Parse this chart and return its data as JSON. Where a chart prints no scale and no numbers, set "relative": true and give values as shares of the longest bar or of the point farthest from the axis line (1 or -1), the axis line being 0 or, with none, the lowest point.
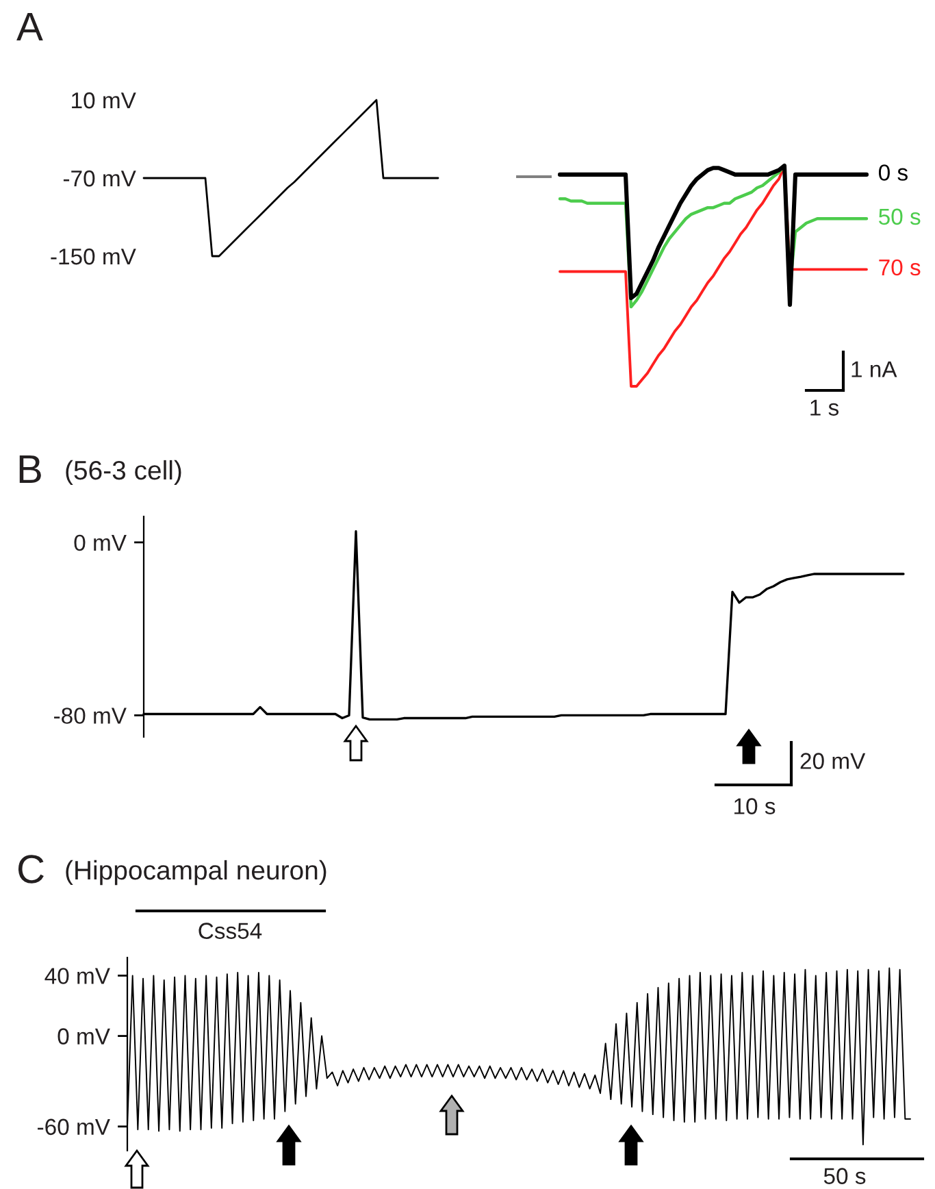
{
  "chart_data": [
    {
      "type": "line",
      "title": "A",
      "ylim": [
        -150,
        10
      ],
      "yticks": [
        {
          "value": 10,
          "label": "10 mV"
        },
        {
          "value": -70,
          "label": "-70 mV"
        },
        {
          "value": -150,
          "label": "-150 mV"
        }
      ],
      "tick_labels": "y",
      "categories": [
        null,
        null,
        null,
        null,
        null,
        null,
        null,
        null,
        null,
        null,
        null,
        null,
        null,
        null,
        null,
        null,
        null,
        null,
        null,
        null,
        null,
        null,
        null,
        null,
        null,
        null,
        null,
        null,
        null,
        null,
        null,
        null,
        null,
        null,
        null,
        null,
        null,
        null,
        null,
        null,
        null,
        null,
        null,
        null
      ],
      "series": [
        {
          "color": "#000000",
          "values": [
            -70,
            -70,
            -70,
            -70,
            -70,
            -70,
            -70,
            -70,
            -70,
            -70,
            -150,
            -150,
            -143,
            -136,
            -129,
            -122,
            -115,
            -108,
            -101,
            -94,
            -87,
            -80,
            -74,
            -67,
            -60,
            -53,
            -46,
            -39,
            -32,
            -25,
            -18,
            -11,
            -4,
            3,
            10,
            -70,
            -70,
            -70,
            -70,
            -70,
            -70,
            -70,
            -70,
            -70
          ]
        }
      ]
    },
    {
      "type": "line",
      "relative": true,
      "tick_labels": false,
      "annotations": [
        "1 nA",
        "1 s"
      ],
      "categories": [
        null,
        null,
        null,
        null,
        null,
        null,
        null,
        null,
        null,
        null,
        null,
        null,
        null,
        null,
        null,
        null,
        null,
        null,
        null,
        null,
        null,
        null,
        null,
        null,
        null,
        null,
        null,
        null,
        null,
        null,
        null,
        null,
        null,
        null,
        null,
        null,
        null,
        null,
        null,
        null,
        null,
        null,
        null,
        null,
        null,
        null,
        null,
        null,
        null,
        null,
        null,
        null,
        null,
        null,
        null,
        null,
        null
      ],
      "series": [
        {
          "name": "70 s",
          "color": "#ff2020",
          "values": [
            0.52,
            0.52,
            0.52,
            0.52,
            0.52,
            0.52,
            0.52,
            0.52,
            0.52,
            0.52,
            0.52,
            0.52,
            0.52,
            0.0,
            0.0,
            0.03,
            0.06,
            0.1,
            0.14,
            0.17,
            0.21,
            0.25,
            0.28,
            0.32,
            0.36,
            0.39,
            0.43,
            0.47,
            0.5,
            0.54,
            0.58,
            0.61,
            0.65,
            0.69,
            0.72,
            0.76,
            0.8,
            0.83,
            0.87,
            0.91,
            0.94,
            1.0,
            0.53,
            0.53,
            0.53,
            0.53,
            0.53,
            0.53,
            0.53,
            0.53,
            0.53,
            0.53,
            0.53,
            0.53,
            0.53,
            0.53,
            0.53
          ]
        },
        {
          "name": "50 s",
          "color": "#4ccc4c",
          "values": [
            0.85,
            0.85,
            0.84,
            0.84,
            0.84,
            0.83,
            0.83,
            0.83,
            0.83,
            0.83,
            0.83,
            0.83,
            0.83,
            0.36,
            0.39,
            0.43,
            0.48,
            0.53,
            0.58,
            0.63,
            0.67,
            0.7,
            0.73,
            0.76,
            0.78,
            0.79,
            0.8,
            0.81,
            0.81,
            0.82,
            0.83,
            0.83,
            0.85,
            0.86,
            0.87,
            0.88,
            0.9,
            0.91,
            0.93,
            0.95,
            0.97,
            1.0,
            0.45,
            0.7,
            0.72,
            0.74,
            0.75,
            0.76,
            0.76,
            0.76,
            0.76,
            0.76,
            0.76,
            0.76,
            0.76,
            0.76,
            0.76
          ]
        },
        {
          "name": "0 s",
          "color": "#000000",
          "values": [
            0.96,
            0.96,
            0.96,
            0.96,
            0.96,
            0.96,
            0.96,
            0.96,
            0.96,
            0.96,
            0.96,
            0.96,
            0.96,
            0.4,
            0.42,
            0.47,
            0.52,
            0.57,
            0.63,
            0.68,
            0.73,
            0.78,
            0.83,
            0.87,
            0.91,
            0.94,
            0.96,
            0.98,
            0.99,
            0.99,
            0.98,
            0.97,
            0.96,
            0.96,
            0.96,
            0.96,
            0.96,
            0.96,
            0.96,
            0.97,
            0.98,
            1.0,
            0.37,
            0.96,
            0.96,
            0.96,
            0.96,
            0.96,
            0.96,
            0.96,
            0.96,
            0.96,
            0.96,
            0.96,
            0.96,
            0.96,
            0.96
          ]
        }
      ]
    },
    {
      "type": "line",
      "title": "B",
      "subtitle": "(56-3 cell)",
      "ylim": [
        -90,
        12
      ],
      "yticks": [
        {
          "value": 0,
          "label": "0 mV"
        },
        {
          "value": -80,
          "label": "-80 mV"
        }
      ],
      "tick_labels": "y",
      "annotations": [
        "20 mV",
        "10 s"
      ],
      "categories": [
        null,
        null,
        null,
        null,
        null,
        null,
        null,
        null,
        null,
        null,
        null,
        null,
        null,
        null,
        null,
        null,
        null,
        null,
        null,
        null,
        null,
        null,
        null,
        null,
        null,
        null,
        null,
        null,
        null,
        null,
        null,
        null,
        null,
        null,
        null,
        null,
        null,
        null,
        null,
        null,
        null,
        null,
        null,
        null,
        null,
        null,
        null,
        null,
        null,
        null,
        null,
        null,
        null,
        null,
        null,
        null,
        null,
        null,
        null,
        null,
        null,
        null,
        null,
        null,
        null,
        null,
        null,
        null,
        null,
        null,
        null,
        null,
        null,
        null,
        null,
        null,
        null,
        null,
        null,
        null,
        null,
        null,
        null,
        null,
        null,
        null,
        null,
        null,
        null,
        null,
        null,
        null,
        null,
        null,
        null,
        null,
        null,
        null,
        null,
        null,
        null,
        null,
        null,
        null,
        null,
        null,
        null,
        null,
        null,
        null,
        null,
        null
      ],
      "series": [
        {
          "color": "#000000",
          "values": [
            -79.4,
            -79.4,
            -79.4,
            -79.4,
            -79.4,
            -79.4,
            -79.4,
            -79.4,
            -79.4,
            -79.4,
            -79.4,
            -79.4,
            -79.4,
            -79.4,
            -79.4,
            -79.4,
            -79.4,
            -76.2,
            -79.4,
            -79.4,
            -79.4,
            -79.4,
            -79.4,
            -79.4,
            -79.4,
            -79.4,
            -79.4,
            -79.4,
            -79.4,
            -81.3,
            -80.0,
            5.1,
            -81.0,
            -81.9,
            -81.9,
            -81.9,
            -81.9,
            -81.9,
            -81.3,
            -81.3,
            -81.3,
            -81.3,
            -81.3,
            -81.3,
            -81.3,
            -81.3,
            -81.3,
            -81.3,
            -80.6,
            -80.6,
            -80.6,
            -80.6,
            -80.6,
            -80.6,
            -80.6,
            -80.6,
            -80.6,
            -80.6,
            -80.6,
            -80.6,
            -80.6,
            -80.0,
            -80.0,
            -80.0,
            -80.0,
            -80.0,
            -80.0,
            -80.0,
            -80.0,
            -80.0,
            -80.0,
            -80.0,
            -80.0,
            -80.0,
            -79.4,
            -79.4,
            -79.4,
            -79.4,
            -79.4,
            -79.4,
            -79.4,
            -79.4,
            -79.4,
            -79.4,
            -79.4,
            -79.4,
            -22.9,
            -27.9,
            -25.4,
            -25.4,
            -24.1,
            -21.6,
            -20.3,
            -18.4,
            -17.1,
            -16.5,
            -15.9,
            -15.2,
            -14.6,
            -14.6,
            -14.6,
            -14.6,
            -14.6,
            -14.6,
            -14.6,
            -14.6,
            -14.6,
            -14.6,
            -14.6,
            -14.6,
            -14.6,
            -14.6
          ]
        }
      ]
    },
    {
      "type": "line",
      "title": "C",
      "subtitle": "(Hippocampal neuron)",
      "ylim": [
        -76,
        52
      ],
      "yticks": [
        {
          "value": 40,
          "label": "40 mV"
        },
        {
          "value": 0,
          "label": "0 mV"
        },
        {
          "value": -60,
          "label": "-60 mV"
        }
      ],
      "tick_labels": "y",
      "annotations": [
        "Css54",
        "50 s"
      ],
      "categories": [
        null,
        null,
        null,
        null,
        null,
        null,
        null,
        null,
        null,
        null,
        null,
        null,
        null,
        null,
        null,
        null,
        null,
        null,
        null,
        null,
        null,
        null,
        null,
        null,
        null,
        null,
        null,
        null,
        null,
        null,
        null,
        null,
        null,
        null,
        null,
        null,
        null,
        null,
        null,
        null,
        null,
        null,
        null,
        null,
        null,
        null,
        null,
        null,
        null,
        null,
        null,
        null,
        null,
        null,
        null,
        null,
        null,
        null,
        null,
        null,
        null,
        null,
        null,
        null,
        null,
        null,
        null,
        null,
        null,
        null,
        null,
        null,
        null,
        null,
        null,
        null,
        null,
        null,
        null,
        null,
        null,
        null,
        null,
        null,
        null,
        null,
        null,
        null,
        null,
        null,
        null,
        null,
        null,
        null,
        null,
        null,
        null,
        null,
        null,
        null,
        null,
        null,
        null,
        null,
        null,
        null,
        null,
        null,
        null,
        null,
        null,
        null,
        null,
        null,
        null,
        null,
        null,
        null,
        null,
        null,
        null,
        null,
        null,
        null,
        null,
        null,
        null,
        null,
        null,
        null,
        null,
        null,
        null,
        null,
        null,
        null,
        null,
        null,
        null,
        null,
        null,
        null,
        null,
        null,
        null,
        null,
        null,
        null,
        null,
        null
      ],
      "series": [
        {
          "color": "#000000",
          "values": [
            -60,
            40,
            -62,
            38,
            -62,
            40,
            -63,
            37,
            -62,
            39,
            -63,
            40,
            -62,
            38,
            -62,
            40,
            -61,
            39,
            -61,
            41,
            -58,
            42,
            -57,
            40,
            -56,
            42,
            -55,
            40,
            -55,
            37,
            -50,
            30,
            -45,
            22,
            -40,
            12,
            -35,
            0,
            -28,
            -24,
            -33,
            -23,
            -31,
            -22,
            -30,
            -21,
            -29,
            -21,
            -28,
            -20,
            -28,
            -20,
            -27,
            -19,
            -27,
            -19,
            -27,
            -19,
            -27,
            -19,
            -27,
            -19,
            -27,
            -19,
            -27,
            -20,
            -27,
            -20,
            -28,
            -20,
            -28,
            -21,
            -28,
            -21,
            -29,
            -21,
            -29,
            -22,
            -30,
            -22,
            -31,
            -23,
            -32,
            -23,
            -33,
            -24,
            -34,
            -25,
            -35,
            -26,
            -38,
            -5,
            -42,
            8,
            -45,
            15,
            -47,
            22,
            -50,
            28,
            -52,
            32,
            -54,
            35,
            -56,
            38,
            -57,
            40,
            -57,
            42,
            -55,
            40,
            -55,
            41,
            -56,
            40,
            -55,
            42,
            -55,
            40,
            -54,
            43,
            -55,
            40,
            -55,
            42,
            -54,
            41,
            -55,
            44,
            -55,
            40,
            -54,
            42,
            -55,
            43,
            -55,
            44,
            -55,
            43,
            -72,
            44,
            -54,
            43,
            -55,
            45,
            -54,
            44,
            -55,
            -55
          ]
        }
      ]
    }
  ]
}
